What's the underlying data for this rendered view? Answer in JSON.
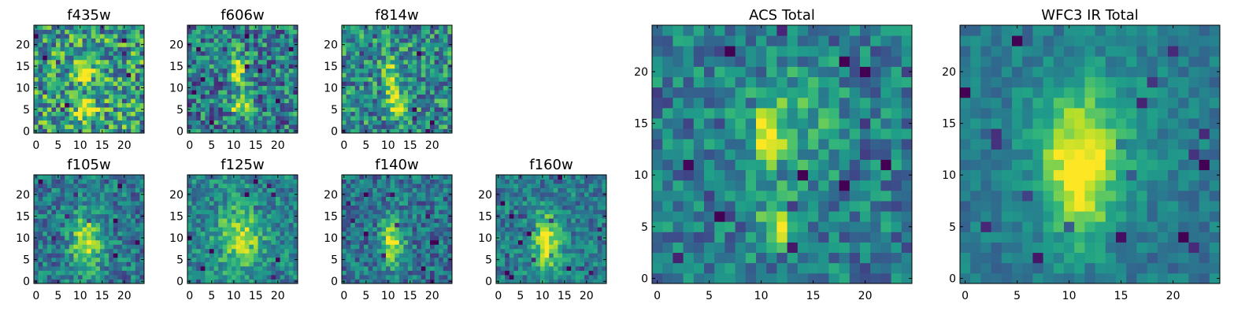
{
  "chart_data": [
    {
      "type": "heatmap",
      "title": "f435w",
      "grid_size": 25,
      "colormap": "viridis",
      "xlim": [
        0,
        24
      ],
      "ylim": [
        0,
        24
      ],
      "xticks": [
        0,
        5,
        10,
        15,
        20
      ],
      "yticks": [
        0,
        5,
        10,
        15,
        20
      ],
      "blobs": [
        {
          "cx": 11,
          "cy": 14,
          "sx": 1.2,
          "sy": 2.0,
          "amp": 0.55
        },
        {
          "cx": 11.5,
          "cy": 5,
          "sx": 1.5,
          "sy": 1.8,
          "amp": 0.5
        }
      ],
      "base": 0.55,
      "noise": 0.35,
      "seed": 1
    },
    {
      "type": "heatmap",
      "title": "f606w",
      "grid_size": 25,
      "colormap": "viridis",
      "xlim": [
        0,
        24
      ],
      "ylim": [
        0,
        24
      ],
      "xticks": [
        0,
        5,
        10,
        15,
        20
      ],
      "yticks": [
        0,
        5,
        10,
        15,
        20
      ],
      "blobs": [
        {
          "cx": 11,
          "cy": 14,
          "sx": 1.2,
          "sy": 2.5,
          "amp": 0.55
        },
        {
          "cx": 11.5,
          "cy": 6,
          "sx": 1.5,
          "sy": 2.0,
          "amp": 0.5
        }
      ],
      "base": 0.42,
      "noise": 0.32,
      "seed": 2
    },
    {
      "type": "heatmap",
      "title": "f814w",
      "grid_size": 25,
      "colormap": "viridis",
      "xlim": [
        0,
        24
      ],
      "ylim": [
        0,
        24
      ],
      "xticks": [
        0,
        5,
        10,
        15,
        20
      ],
      "yticks": [
        0,
        5,
        10,
        15,
        20
      ],
      "blobs": [
        {
          "cx": 11,
          "cy": 12,
          "sx": 1.4,
          "sy": 3.0,
          "amp": 0.45
        },
        {
          "cx": 12,
          "cy": 6,
          "sx": 1.5,
          "sy": 2.0,
          "amp": 0.45
        }
      ],
      "base": 0.48,
      "noise": 0.3,
      "seed": 3
    },
    {
      "type": "heatmap",
      "title": "f105w",
      "grid_size": 25,
      "colormap": "viridis",
      "xlim": [
        0,
        24
      ],
      "ylim": [
        0,
        24
      ],
      "xticks": [
        0,
        5,
        10,
        15,
        20
      ],
      "yticks": [
        0,
        5,
        10,
        15,
        20
      ],
      "blobs": [
        {
          "cx": 11.5,
          "cy": 9,
          "sx": 2.5,
          "sy": 4.5,
          "amp": 0.5
        }
      ],
      "base": 0.4,
      "noise": 0.22,
      "seed": 4
    },
    {
      "type": "heatmap",
      "title": "f125w",
      "grid_size": 25,
      "colormap": "viridis",
      "xlim": [
        0,
        24
      ],
      "ylim": [
        0,
        24
      ],
      "xticks": [
        0,
        5,
        10,
        15,
        20
      ],
      "yticks": [
        0,
        5,
        10,
        15,
        20
      ],
      "blobs": [
        {
          "cx": 11.5,
          "cy": 10,
          "sx": 3.5,
          "sy": 5.0,
          "amp": 0.42
        }
      ],
      "base": 0.45,
      "noise": 0.2,
      "seed": 5
    },
    {
      "type": "heatmap",
      "title": "f140w",
      "grid_size": 25,
      "colormap": "viridis",
      "xlim": [
        0,
        24
      ],
      "ylim": [
        0,
        24
      ],
      "xticks": [
        0,
        5,
        10,
        15,
        20
      ],
      "yticks": [
        0,
        5,
        10,
        15,
        20
      ],
      "blobs": [
        {
          "cx": 11,
          "cy": 9,
          "sx": 1.8,
          "sy": 4.0,
          "amp": 0.55
        }
      ],
      "base": 0.38,
      "noise": 0.22,
      "seed": 6
    },
    {
      "type": "heatmap",
      "title": "f160w",
      "grid_size": 25,
      "colormap": "viridis",
      "xlim": [
        0,
        24
      ],
      "ylim": [
        0,
        24
      ],
      "xticks": [
        0,
        5,
        10,
        15,
        20
      ],
      "yticks": [
        0,
        5,
        10,
        15,
        20
      ],
      "blobs": [
        {
          "cx": 11,
          "cy": 9,
          "sx": 2.0,
          "sy": 4.5,
          "amp": 0.55
        }
      ],
      "base": 0.42,
      "noise": 0.2,
      "seed": 7
    },
    {
      "type": "heatmap",
      "title": "ACS Total",
      "grid_size": 25,
      "colormap": "viridis",
      "xlim": [
        0,
        24
      ],
      "ylim": [
        0,
        24
      ],
      "xticks": [
        0,
        5,
        10,
        15,
        20
      ],
      "yticks": [
        0,
        5,
        10,
        15,
        20
      ],
      "blobs": [
        {
          "cx": 10.5,
          "cy": 13.5,
          "sx": 0.9,
          "sy": 1.8,
          "amp": 0.55
        },
        {
          "cx": 11.5,
          "cy": 5.5,
          "sx": 1.2,
          "sy": 1.6,
          "amp": 0.55
        },
        {
          "cx": 13,
          "cy": 15,
          "sx": 3.0,
          "sy": 3.5,
          "amp": 0.22
        }
      ],
      "base": 0.42,
      "noise": 0.22,
      "seed": 8
    },
    {
      "type": "heatmap",
      "title": "WFC3 IR Total",
      "grid_size": 25,
      "colormap": "viridis",
      "xlim": [
        0,
        24
      ],
      "ylim": [
        0,
        24
      ],
      "xticks": [
        0,
        5,
        10,
        15,
        20
      ],
      "yticks": [
        0,
        5,
        10,
        15,
        20
      ],
      "blobs": [
        {
          "cx": 11,
          "cy": 10,
          "sx": 2.3,
          "sy": 4.5,
          "amp": 0.55
        },
        {
          "cx": 12,
          "cy": 14,
          "sx": 4.5,
          "sy": 5.0,
          "amp": 0.2
        }
      ],
      "base": 0.4,
      "noise": 0.12,
      "seed": 9
    }
  ]
}
